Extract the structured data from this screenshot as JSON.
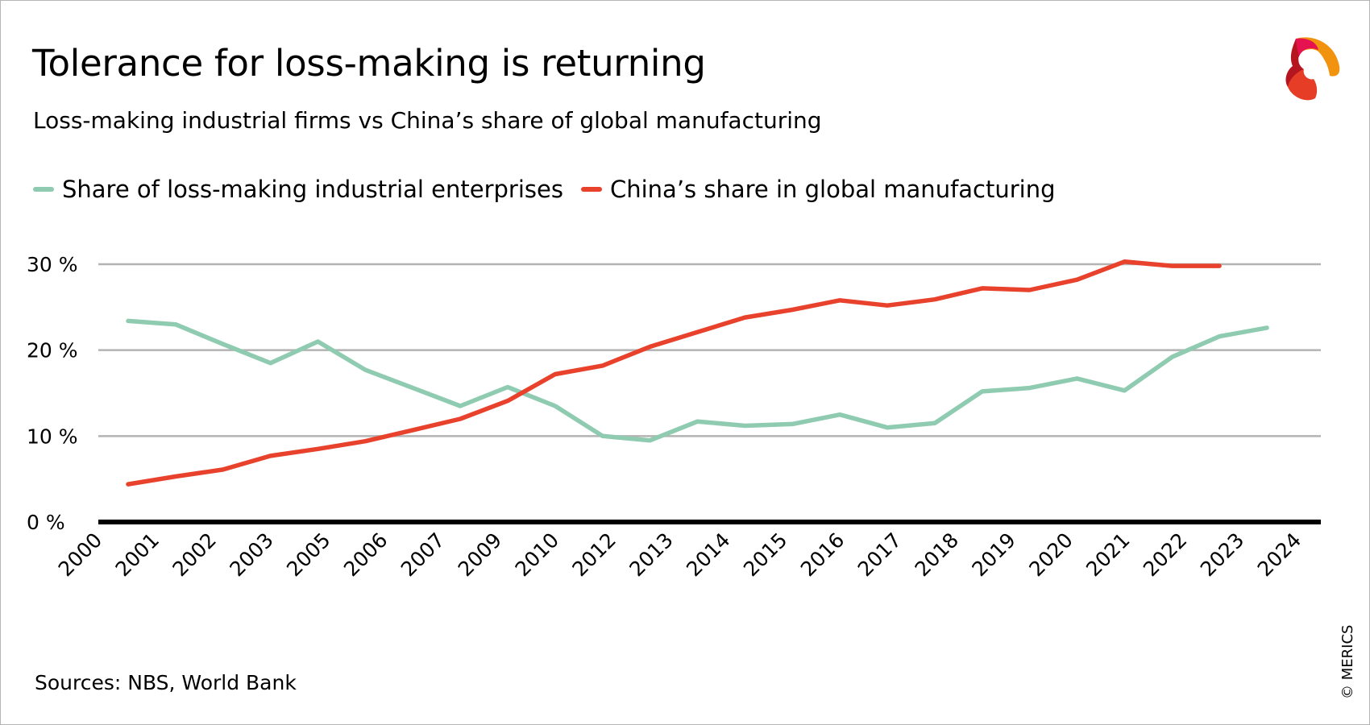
{
  "header": {
    "title": "Tolerance for loss-making is returning",
    "subtitle": "Loss-making industrial firms vs China’s share of global manufacturing"
  },
  "footer": {
    "sources": "Sources: NBS, World Bank",
    "copyright": "© MERICS"
  },
  "logo": {
    "brand": "MERICS"
  },
  "chart_data": {
    "type": "line",
    "title": "Tolerance for loss-making is returning",
    "subtitle": "Loss-making industrial firms vs China’s share of global manufacturing",
    "xlabel": "",
    "ylabel": "",
    "ylim": [
      0,
      30
    ],
    "yticks": [
      0,
      10,
      20,
      30
    ],
    "ytick_labels": [
      "0 %",
      "10 %",
      "20 %",
      "30 %"
    ],
    "xtick_labels": [
      "2000",
      "2001",
      "2002",
      "2003",
      "2005",
      "2006",
      "2007",
      "2009",
      "2010",
      "2012",
      "2013",
      "2014",
      "2015",
      "2016",
      "2017",
      "2018",
      "2019",
      "2020",
      "2021",
      "2022",
      "2023",
      "2024"
    ],
    "xtick_labels_tail": [
      "2024"
    ],
    "xlim": [
      2000,
      2024
    ],
    "grid": "horizontal",
    "legend_position": "top-left",
    "series": [
      {
        "name": "Share of loss-making industrial enterprises",
        "color": "#8ecbb0",
        "x": [
          2000,
          2001,
          2002,
          2003,
          2004,
          2005,
          2006,
          2007,
          2008,
          2009,
          2010,
          2011,
          2012,
          2013,
          2014,
          2015,
          2016,
          2017,
          2018,
          2019,
          2020,
          2021,
          2022,
          2023,
          2024
        ],
        "values": [
          23.4,
          23.0,
          20.7,
          18.5,
          21.0,
          17.7,
          15.6,
          13.5,
          15.7,
          13.5,
          10.0,
          9.5,
          11.7,
          11.2,
          11.4,
          12.5,
          11.0,
          11.5,
          15.2,
          15.6,
          16.7,
          15.3,
          19.2,
          21.6,
          22.6
        ]
      },
      {
        "name": "China’s share in global manufacturing",
        "color": "#e8412c",
        "x": [
          2000,
          2001,
          2002,
          2003,
          2004,
          2005,
          2006,
          2007,
          2008,
          2009,
          2010,
          2011,
          2012,
          2013,
          2014,
          2015,
          2016,
          2017,
          2018,
          2019,
          2020,
          2021,
          2022,
          2023
        ],
        "values": [
          4.4,
          5.3,
          6.1,
          7.7,
          8.5,
          9.4,
          10.7,
          12.0,
          14.1,
          17.2,
          18.2,
          20.4,
          22.1,
          23.8,
          24.7,
          25.8,
          25.2,
          25.9,
          27.2,
          27.0,
          28.2,
          30.3,
          29.8,
          29.8
        ]
      }
    ]
  }
}
